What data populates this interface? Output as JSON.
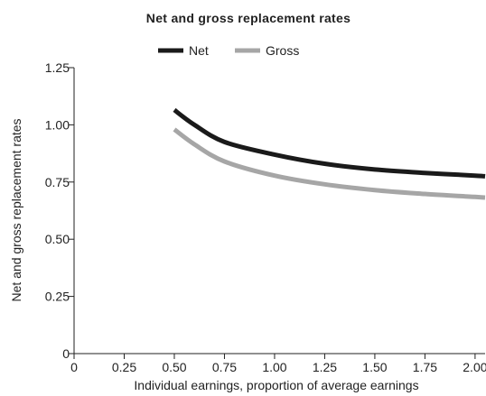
{
  "chart_data": {
    "type": "line",
    "title": "Net and gross replacement rates",
    "xlabel": "Individual earnings, proportion of average earnings",
    "ylabel": "Net and gross replacement rates",
    "xlim": [
      0,
      2.05
    ],
    "ylim": [
      0,
      1.25
    ],
    "x_ticks": [
      "0",
      "0.25",
      "0.50",
      "0.75",
      "1.00",
      "1.25",
      "1.50",
      "1.75",
      "2.00"
    ],
    "x_tick_values": [
      0,
      0.25,
      0.5,
      0.75,
      1.0,
      1.25,
      1.5,
      1.75,
      2.0
    ],
    "y_ticks": [
      "0",
      "0.25",
      "0.50",
      "0.75",
      "1.00",
      "1.25"
    ],
    "y_tick_values": [
      0,
      0.25,
      0.5,
      0.75,
      1.0,
      1.25
    ],
    "grid": false,
    "legend_position": "top-center",
    "x": [
      0.5,
      0.6,
      0.75,
      1.0,
      1.25,
      1.5,
      1.75,
      2.0,
      2.05
    ],
    "series": [
      {
        "name": "Net",
        "color": "#1a1a1a",
        "values": [
          1.065,
          1.0,
          0.925,
          0.87,
          0.83,
          0.805,
          0.79,
          0.778,
          0.775
        ]
      },
      {
        "name": "Gross",
        "color": "#a6a6a6",
        "values": [
          0.98,
          0.915,
          0.84,
          0.778,
          0.74,
          0.715,
          0.698,
          0.685,
          0.682
        ]
      }
    ]
  }
}
